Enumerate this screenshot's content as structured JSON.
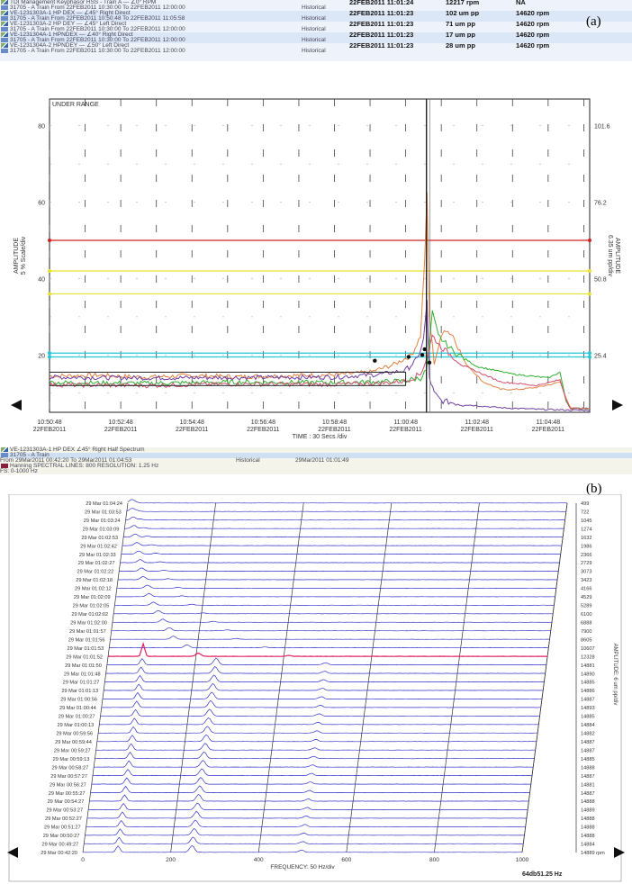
{
  "panel_a": {
    "label": "(a)",
    "rows": [
      {
        "icon": "check-icon",
        "text": "TDI Management Keyphasor HSS - Train A  —  ∠0°  RPM",
        "status": "",
        "time": "22FEB2011 11:01:24",
        "amp": "12217 rpm",
        "rpm": "NA"
      },
      {
        "icon": "train-icon",
        "text": "31705 - A Train  From 22FEB2011 10:30:00 To 22FEB2011 12:00:00",
        "status": "Historical",
        "time": "",
        "amp": "",
        "rpm": ""
      },
      {
        "icon": "check-icon",
        "text": "VE-1231303A-1 HP DEX  —  ∠45°  Right  Direct",
        "status": "",
        "time": "22FEB2011 11:01:23",
        "amp": "102 um  pp",
        "rpm": "14620 rpm"
      },
      {
        "icon": "train-icon",
        "text": "31705 - A Train  From 22FEB2011 10:50:48 To 22FEB2011 11:05:58",
        "status": "Historical",
        "time": "",
        "amp": "",
        "rpm": ""
      },
      {
        "icon": "check-icon",
        "text": "VE-1231303A-2 HP DEY  —  ∠45°  Left  Direct",
        "status": "",
        "time": "22FEB2011 11:01:23",
        "amp": "71 um  pp",
        "rpm": "14620 rpm"
      },
      {
        "icon": "train-icon",
        "text": "31705 - A Train  From 22FEB2011 10:30:00 To 22FEB2011 12:00:00",
        "status": "Historical",
        "time": "",
        "amp": "",
        "rpm": ""
      },
      {
        "icon": "check-icon",
        "text": "VE-1231304A-1 HPNDEX  —  ∠40°  Right  Direct",
        "status": "",
        "time": "22FEB2011 11:01:23",
        "amp": "17 um  pp",
        "rpm": "14620 rpm"
      },
      {
        "icon": "train-icon",
        "text": "31705 - A Train  From 22FEB2011 10:30:00 To 22FEB2011 12:00:00",
        "status": "Historical",
        "time": "",
        "amp": "",
        "rpm": ""
      },
      {
        "icon": "check-icon",
        "text": "VE-1231304A-2 HPNDEY  —  ∠50°  Left  Direct",
        "status": "",
        "time": "22FEB2011 11:01:23",
        "amp": "28 um  pp",
        "rpm": "14620 rpm"
      },
      {
        "icon": "train-icon",
        "text": "31705 - A Train  From 22FEB2011 10:30:00 To 22FEB2011 12:00:00",
        "status": "Historical",
        "time": "",
        "amp": "",
        "rpm": ""
      }
    ]
  },
  "panel_b": {
    "label": "(b)",
    "rows": [
      {
        "icon": "check-icon",
        "text": "VE-1231303A-1 HP DEX  ∠45°  Right  Half Spectrum",
        "mid": "",
        "right": ""
      },
      {
        "icon": "train-icon",
        "text": "31705 - A Train",
        "mid": "",
        "right": ""
      },
      {
        "icon": "",
        "text": "From 29Mar2011 00:42:20 To 29Mar2011 01:04:53",
        "mid": "Historical",
        "right": "29Mar2011 01:01:49"
      },
      {
        "icon": "spectrum-icon",
        "text": "Hanning   SPECTRAL LINES: 800   RESOLUTION: 1.25 Hz",
        "mid": "",
        "right": ""
      },
      {
        "icon": "",
        "text": "FS: 0-1000 Hz",
        "mid": "",
        "right": ""
      }
    ],
    "cursor_readout": "64db51.25 Hz"
  },
  "colors": {
    "alarm_red": "#d02020",
    "alarm_yellow": "#e8e030",
    "alarm_cyan": "#20c8d8",
    "dex_orange": "#e08040",
    "dey_purple": "#7040a0",
    "ndex_green": "#30b030",
    "ndey_pink": "#d05070",
    "waterfall_blue": "#3030c8",
    "cursor_pink": "#e02060"
  },
  "chart_data": [
    {
      "type": "line",
      "title": "",
      "xlabel": "TIME : 30 Secs /div",
      "ylabel": "AMPLITUDE\n5 % Scale/div",
      "ylabel_right": "AMPLITUDE\n6.35 um pp/div",
      "annotation": "UNDER RANGE",
      "ylim": [
        5,
        87
      ],
      "yticks": [
        20,
        40,
        60,
        80
      ],
      "yticks_right": [
        "25.4",
        "50.8",
        "76.2",
        "101.6"
      ],
      "xticks": [
        {
          "t": 0,
          "time": "10:50:48",
          "date": "22FEB2011"
        },
        {
          "t": 120,
          "time": "10:52:48",
          "date": "22FEB2011"
        },
        {
          "t": 240,
          "time": "10:54:48",
          "date": "22FEB2011"
        },
        {
          "t": 360,
          "time": "10:56:48",
          "date": "22FEB2011"
        },
        {
          "t": 480,
          "time": "10:58:48",
          "date": "22FEB2011"
        },
        {
          "t": 600,
          "time": "11:00:48",
          "date": "22FEB2011"
        },
        {
          "t": 720,
          "time": "11:02:48",
          "date": "22FEB2011"
        },
        {
          "t": 840,
          "time": "11:04:48",
          "date": "22FEB2011"
        }
      ],
      "xlim": [
        0,
        910
      ],
      "cursor_t": 635,
      "alarm_lines": [
        {
          "y": 50,
          "color": "#d02020"
        },
        {
          "y": 42,
          "color": "#e8e030"
        },
        {
          "y": 36,
          "color": "#e8e030"
        },
        {
          "y": 20.5,
          "color": "#20c8d8"
        },
        {
          "y": 19.5,
          "color": "#20c8d8"
        }
      ],
      "series": [
        {
          "color": "#e08040",
          "points": [
            [
              0,
              14.5
            ],
            [
              80,
              14.7
            ],
            [
              160,
              14.2
            ],
            [
              240,
              14.6
            ],
            [
              320,
              14.3
            ],
            [
              400,
              14.6
            ],
            [
              480,
              14.8
            ],
            [
              540,
              15.5
            ],
            [
              580,
              17.5
            ],
            [
              610,
              20
            ],
            [
              625,
              25
            ],
            [
              632,
              45
            ],
            [
              636,
              62
            ],
            [
              640,
              30
            ],
            [
              648,
              18
            ],
            [
              655,
              22
            ],
            [
              665,
              27
            ],
            [
              680,
              25
            ],
            [
              700,
              18
            ],
            [
              730,
              13
            ],
            [
              760,
              11
            ],
            [
              790,
              11
            ],
            [
              820,
              11.5
            ],
            [
              850,
              12.5
            ],
            [
              860,
              13
            ],
            [
              870,
              9
            ],
            [
              878,
              6
            ],
            [
              910,
              6
            ]
          ]
        },
        {
          "color": "#7040a0",
          "points": [
            [
              0,
              14.2
            ],
            [
              160,
              14
            ],
            [
              320,
              14.1
            ],
            [
              480,
              14.2
            ],
            [
              560,
              15
            ],
            [
              600,
              16
            ],
            [
              620,
              19
            ],
            [
              630,
              24
            ],
            [
              636,
              34
            ],
            [
              640,
              14
            ],
            [
              648,
              10
            ],
            [
              660,
              8
            ],
            [
              700,
              7
            ],
            [
              760,
              6.2
            ],
            [
              820,
              5.8
            ],
            [
              870,
              5.6
            ],
            [
              910,
              5.5
            ]
          ]
        },
        {
          "color": "#30b030",
          "points": [
            [
              0,
              12.8
            ],
            [
              160,
              12.6
            ],
            [
              320,
              12.9
            ],
            [
              480,
              12.8
            ],
            [
              560,
              13
            ],
            [
              600,
              13.3
            ],
            [
              625,
              14
            ],
            [
              635,
              16
            ],
            [
              645,
              31
            ],
            [
              655,
              25
            ],
            [
              680,
              21
            ],
            [
              720,
              17
            ],
            [
              780,
              15
            ],
            [
              840,
              14
            ],
            [
              860,
              15.5
            ],
            [
              870,
              8
            ],
            [
              878,
              6
            ],
            [
              910,
              6
            ]
          ]
        },
        {
          "color": "#d05070",
          "points": [
            [
              0,
              12.2
            ],
            [
              160,
              12.0
            ],
            [
              320,
              12.4
            ],
            [
              480,
              12.3
            ],
            [
              560,
              12.6
            ],
            [
              600,
              13.2
            ],
            [
              625,
              15
            ],
            [
              635,
              19
            ],
            [
              645,
              25
            ],
            [
              660,
              22
            ],
            [
              700,
              17
            ],
            [
              760,
              13
            ],
            [
              820,
              12
            ],
            [
              860,
              13.5
            ],
            [
              870,
              8.5
            ],
            [
              878,
              6
            ],
            [
              910,
              6
            ]
          ]
        }
      ],
      "markers": [
        [
          548,
          18.5
        ],
        [
          605,
          19.5
        ],
        [
          628,
          20
        ],
        [
          632,
          21.5
        ],
        [
          640,
          18
        ]
      ]
    },
    {
      "type": "area",
      "title": "",
      "xlabel": "FREQUENCY: 50 Hz/div",
      "ylabel_right": "AMPLITUDE: 6 um pp/div",
      "xticks": [
        0,
        200,
        400,
        600,
        800,
        1000
      ],
      "xlim": [
        0,
        1000
      ],
      "highlight_index": 18,
      "rows": [
        {
          "time": "29 Mar 01:04:24",
          "rpm": "499"
        },
        {
          "time": "29 Mar 01:03:53",
          "rpm": "722"
        },
        {
          "time": "29 Mar 01:03:24",
          "rpm": "1045"
        },
        {
          "time": "29 Mar 01:03:09",
          "rpm": "1274"
        },
        {
          "time": "29 Mar 01:02:53",
          "rpm": "1632"
        },
        {
          "time": "29 Mar 01:02:42",
          "rpm": "1986"
        },
        {
          "time": "29 Mar 01:02:33",
          "rpm": "2366"
        },
        {
          "time": "29 Mar 01:02:27",
          "rpm": "2729"
        },
        {
          "time": "29 Mar 01:02:22",
          "rpm": "3073"
        },
        {
          "time": "29 Mar 01:02:18",
          "rpm": "3423"
        },
        {
          "time": "29 Mar 01:02:12",
          "rpm": "4166"
        },
        {
          "time": "29 Mar 01:02:09",
          "rpm": "4529"
        },
        {
          "time": "29 Mar 01:02:05",
          "rpm": "5289"
        },
        {
          "time": "29 Mar 01:02:02",
          "rpm": "6100"
        },
        {
          "time": "29 Mar 01:02:00",
          "rpm": "6888"
        },
        {
          "time": "29 Mar 01:01:57",
          "rpm": "7900"
        },
        {
          "time": "29 Mar 01:01:56",
          "rpm": "8605"
        },
        {
          "time": "29 Mar 01:01:53",
          "rpm": "10607"
        },
        {
          "time": "29 Mar 01:01:52",
          "rpm": "12328"
        },
        {
          "time": "29 Mar 01:01:50",
          "rpm": "14881"
        },
        {
          "time": "29 Mar 01:01:48",
          "rpm": "14890"
        },
        {
          "time": "29 Mar 01:01:27",
          "rpm": "14885"
        },
        {
          "time": "29 Mar 01:01:13",
          "rpm": "14886"
        },
        {
          "time": "29 Mar 01:00:56",
          "rpm": "14887"
        },
        {
          "time": "29 Mar 01:00:44",
          "rpm": "14893"
        },
        {
          "time": "29 Mar 01:00:27",
          "rpm": "14885"
        },
        {
          "time": "29 Mar 01:00:13",
          "rpm": "14884"
        },
        {
          "time": "29 Mar 00:59:56",
          "rpm": "14882"
        },
        {
          "time": "29 Mar 00:59:44",
          "rpm": "14887"
        },
        {
          "time": "29 Mar 00:59:27",
          "rpm": "14887"
        },
        {
          "time": "29 Mar 00:59:13",
          "rpm": "14885"
        },
        {
          "time": "29 Mar 00:58:27",
          "rpm": "14888"
        },
        {
          "time": "29 Mar 00:57:27",
          "rpm": "14887"
        },
        {
          "time": "29 Mar 00:56:27",
          "rpm": "14881"
        },
        {
          "time": "29 Mar 00:55:27",
          "rpm": "14887"
        },
        {
          "time": "29 Mar 00:54:27",
          "rpm": "14888"
        },
        {
          "time": "29 Mar 00:53:27",
          "rpm": "14889"
        },
        {
          "time": "29 Mar 00:52:27",
          "rpm": "14888"
        },
        {
          "time": "29 Mar 00:51:27",
          "rpm": "14888"
        },
        {
          "time": "29 Mar 00:50:27",
          "rpm": "14888"
        },
        {
          "time": "29 Mar 00:49:27",
          "rpm": "14884"
        },
        {
          "time": "29 Mar 00:42:20",
          "rpm": "14889 rpm"
        }
      ]
    }
  ]
}
